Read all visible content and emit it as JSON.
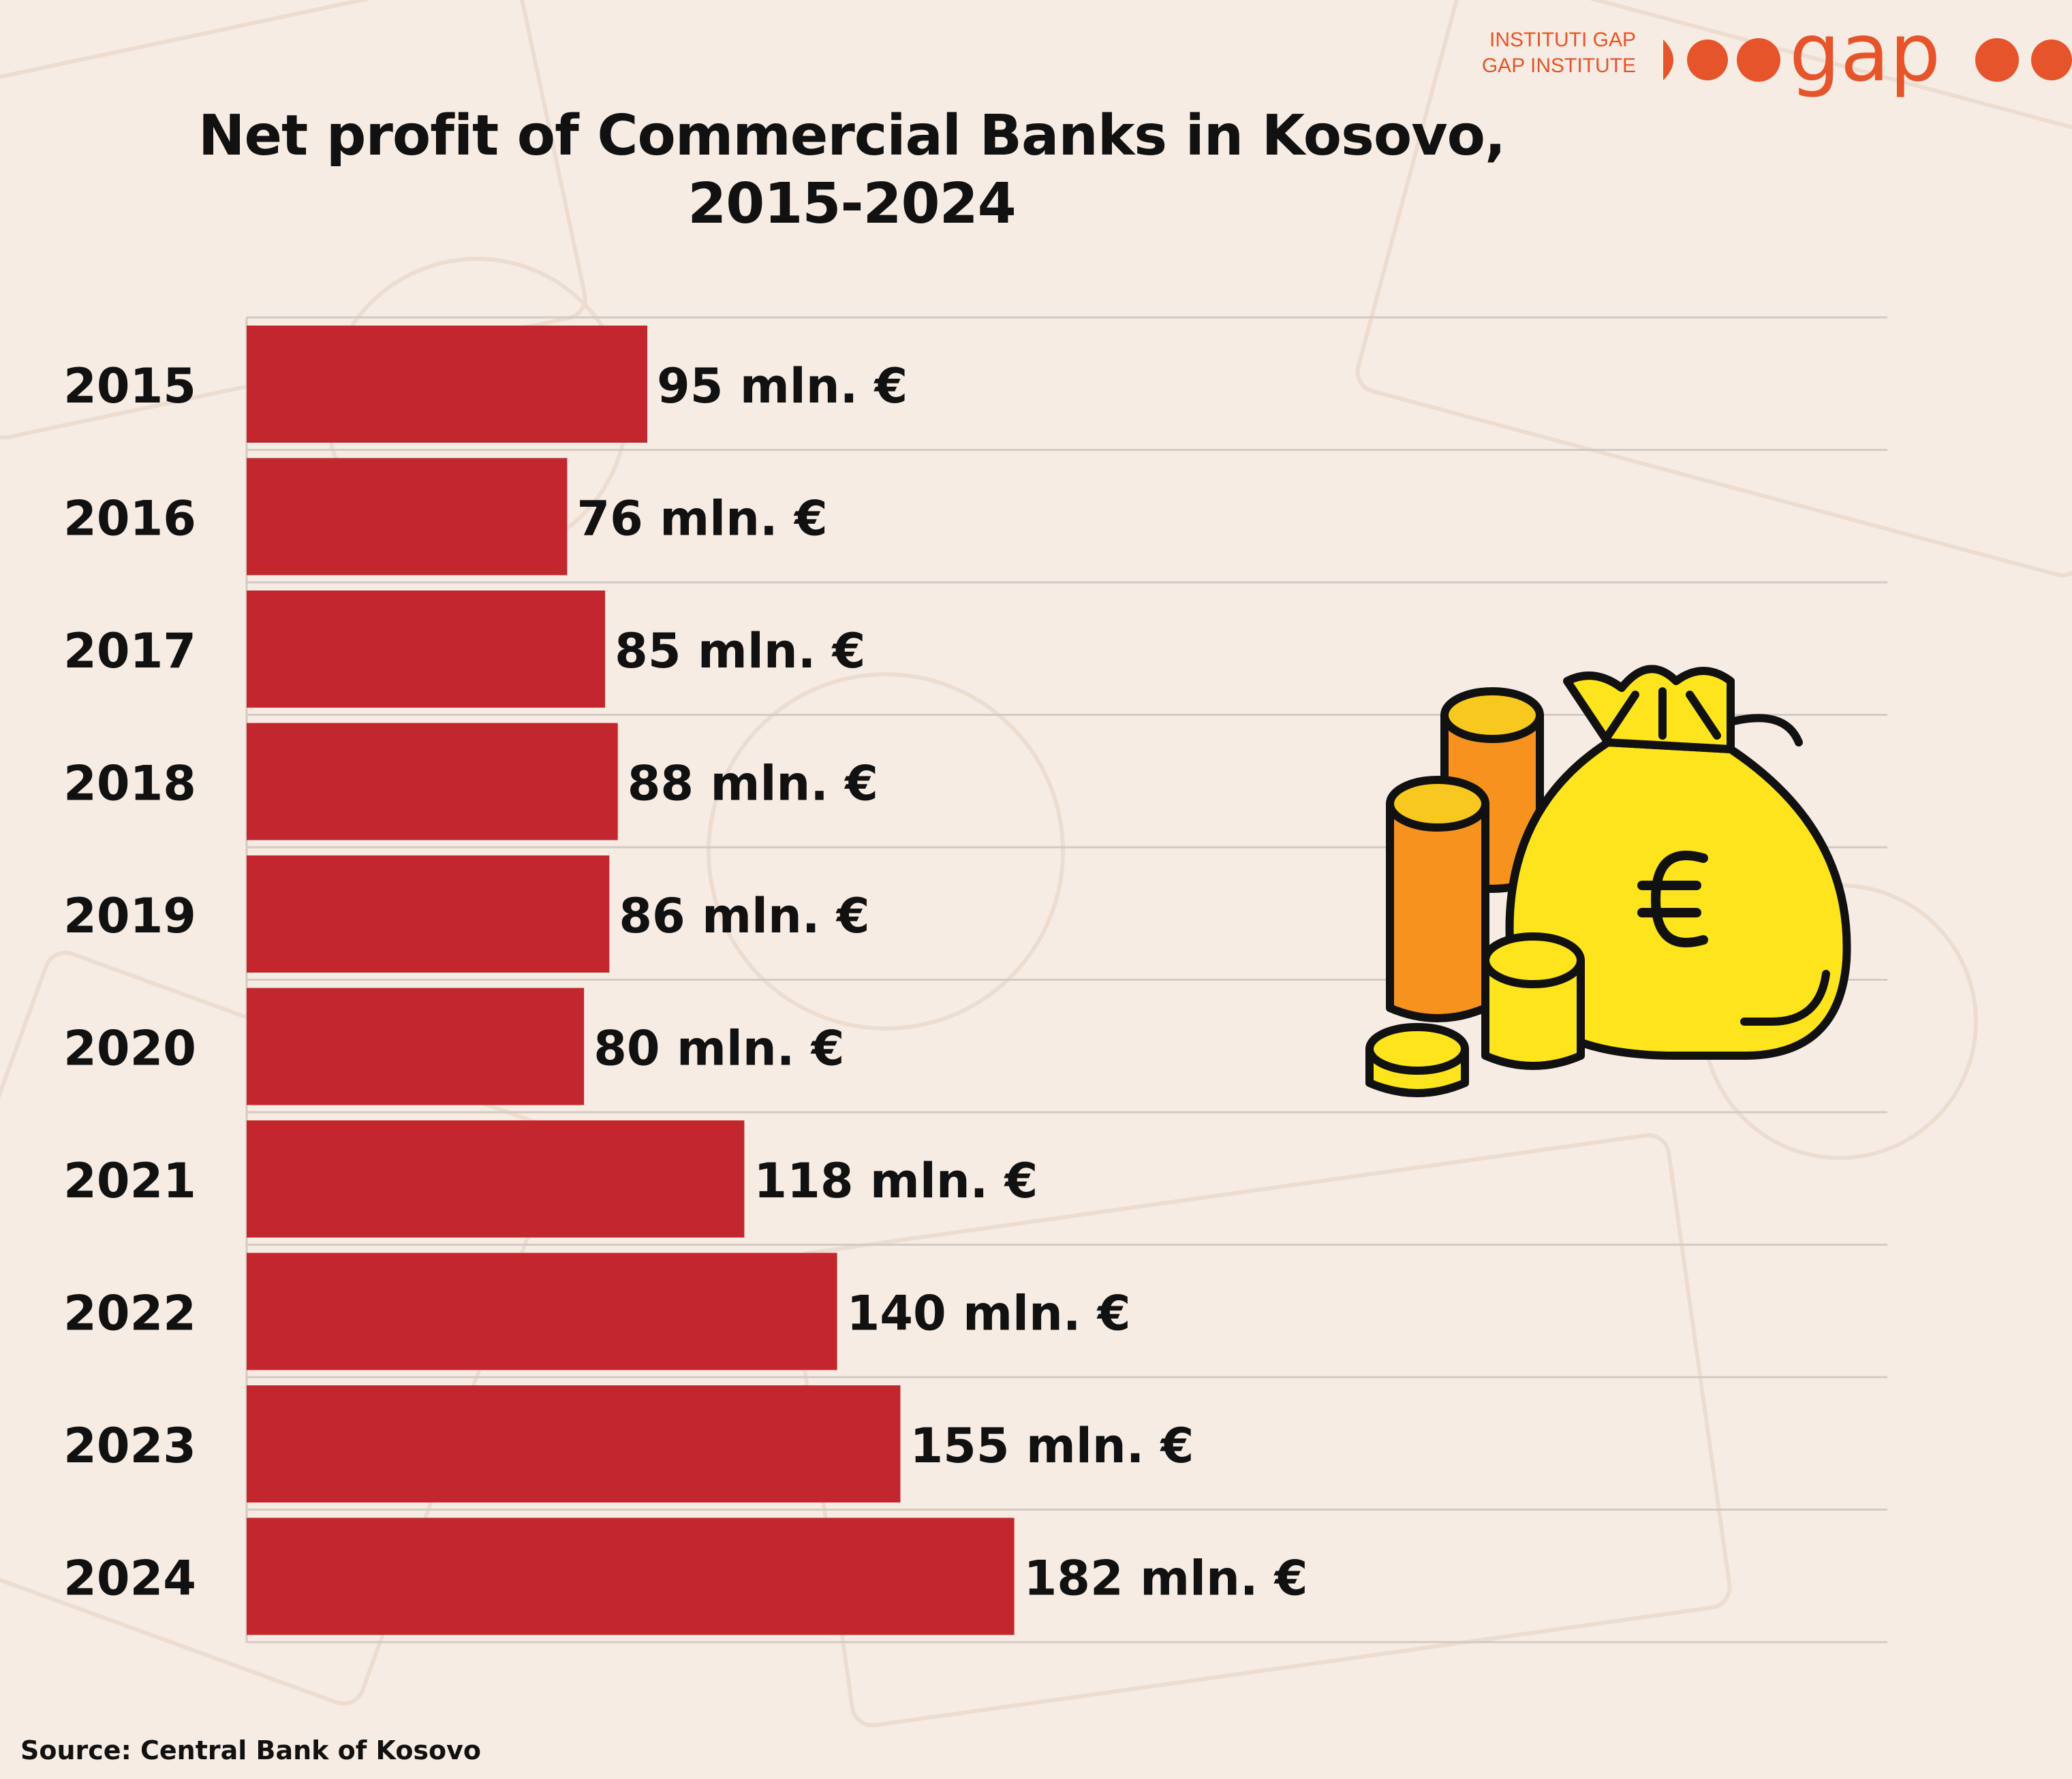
{
  "logo": {
    "line1": "INSTITUTI GAP",
    "line2": "GAP INSTITUTE",
    "wordmark": "gap",
    "color": "#e5542a"
  },
  "title_line1": "Net profit of Commercial Banks in Kosovo,",
  "title_line2": "2015-2024",
  "source": "Source: Central Bank of Kosovo",
  "icon": "money-bag-euro-coins-icon",
  "chart_data": {
    "type": "bar",
    "orientation": "horizontal",
    "categories": [
      "2015",
      "2016",
      "2017",
      "2018",
      "2019",
      "2020",
      "2021",
      "2022",
      "2023",
      "2024"
    ],
    "values": [
      95,
      76,
      85,
      88,
      86,
      80,
      118,
      140,
      155,
      182
    ],
    "data_labels": [
      "95 mln. €",
      "76 mln. €",
      "85 mln. €",
      "88 mln. €",
      "86 mln. €",
      "80 mln. €",
      "118 mln. €",
      "140 mln. €",
      "155 mln. €",
      "182 mln. €"
    ],
    "bar_color": "#c1272d",
    "grid": true
  }
}
